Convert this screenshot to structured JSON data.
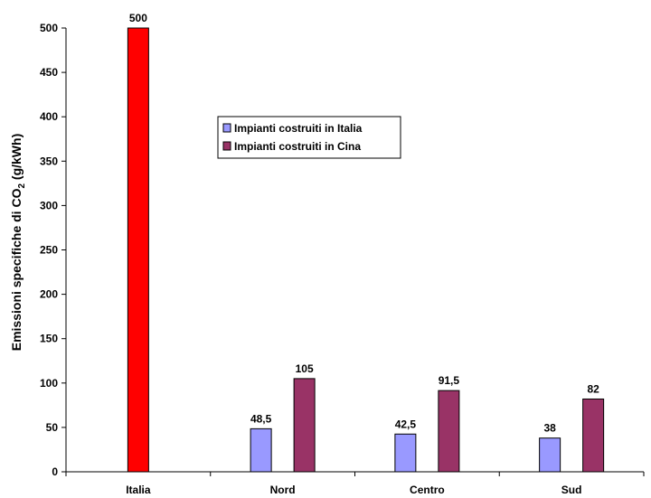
{
  "chart_data": {
    "type": "bar",
    "categories": [
      "Italia",
      "Nord",
      "Centro",
      "Sud"
    ],
    "series": [
      {
        "name": "",
        "color": "#ff0000",
        "values": [
          500,
          null,
          null,
          null
        ],
        "labels": [
          "500",
          "",
          "",
          ""
        ]
      },
      {
        "name": "Impianti costruiti in Italia",
        "color": "#9999ff",
        "values": [
          null,
          48.5,
          42.5,
          38
        ],
        "labels": [
          "",
          "48,5",
          "42,5",
          "38"
        ]
      },
      {
        "name": "Impianti costruiti in Cina",
        "color": "#993366",
        "values": [
          null,
          105,
          91.5,
          82
        ],
        "labels": [
          "",
          "105",
          "91,5",
          "82"
        ]
      }
    ],
    "ylabel_main": "Emissioni specifiche di CO",
    "ylabel_sub": "2",
    "ylabel_tail": " (g/kWh)",
    "ylim": [
      0,
      500
    ],
    "yticks": [
      0,
      50,
      100,
      150,
      200,
      250,
      300,
      350,
      400,
      450,
      500
    ],
    "legend_placement": "center-left",
    "grid": false
  }
}
